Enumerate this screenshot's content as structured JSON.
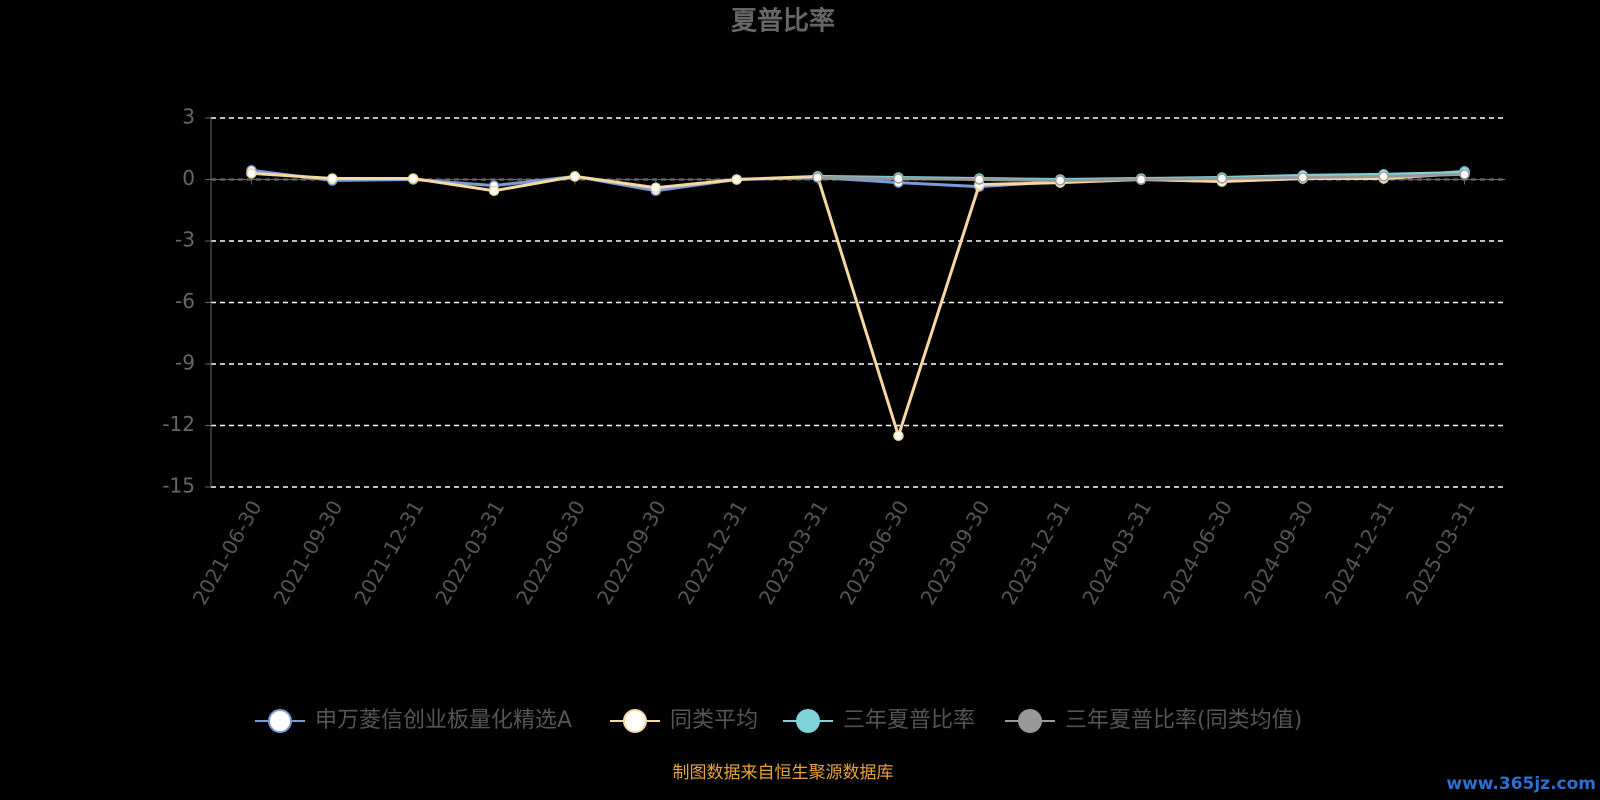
{
  "chart_data": {
    "type": "line",
    "title": "夏普比率",
    "categories": [
      "2021-06-30",
      "2021-09-30",
      "2021-12-31",
      "2022-03-31",
      "2022-06-30",
      "2022-09-30",
      "2022-12-31",
      "2023-03-31",
      "2023-06-30",
      "2023-09-30",
      "2023-12-31",
      "2024-03-31",
      "2024-06-30",
      "2024-09-30",
      "2024-12-31",
      "2025-03-31"
    ],
    "series": [
      {
        "name": "申万菱信创业板量化精选A",
        "color": "#7b9bd6",
        "values": [
          0.45,
          -0.05,
          0.0,
          -0.3,
          0.15,
          -0.55,
          0.0,
          0.1,
          -0.15,
          -0.35,
          -0.1,
          0.0,
          -0.1,
          0.05,
          0.1,
          0.4
        ]
      },
      {
        "name": "同类平均",
        "color": "#f5d9a0",
        "values": [
          0.3,
          0.05,
          0.05,
          -0.55,
          0.15,
          -0.4,
          0.0,
          0.15,
          -12.5,
          -0.25,
          -0.15,
          0.0,
          -0.1,
          0.05,
          0.05,
          0.3
        ]
      },
      {
        "name": "三年夏普比率",
        "color": "#7fd3d8",
        "values": [
          null,
          null,
          null,
          null,
          null,
          null,
          null,
          0.15,
          0.1,
          0.05,
          0.0,
          0.05,
          0.1,
          0.2,
          0.25,
          0.35
        ]
      },
      {
        "name": "三年夏普比率(同类均值)",
        "color": "#999999",
        "values": [
          null,
          null,
          null,
          null,
          null,
          null,
          null,
          0.1,
          0.05,
          0.0,
          -0.05,
          0.0,
          0.05,
          0.1,
          0.15,
          0.25
        ]
      }
    ],
    "ylim": [
      -15,
      3
    ],
    "yticks": [
      3,
      0,
      -3,
      -6,
      -9,
      -12,
      -15
    ],
    "grid": true,
    "source": "制图数据来自恒生聚源数据库",
    "watermark": "www.365jz.com"
  }
}
